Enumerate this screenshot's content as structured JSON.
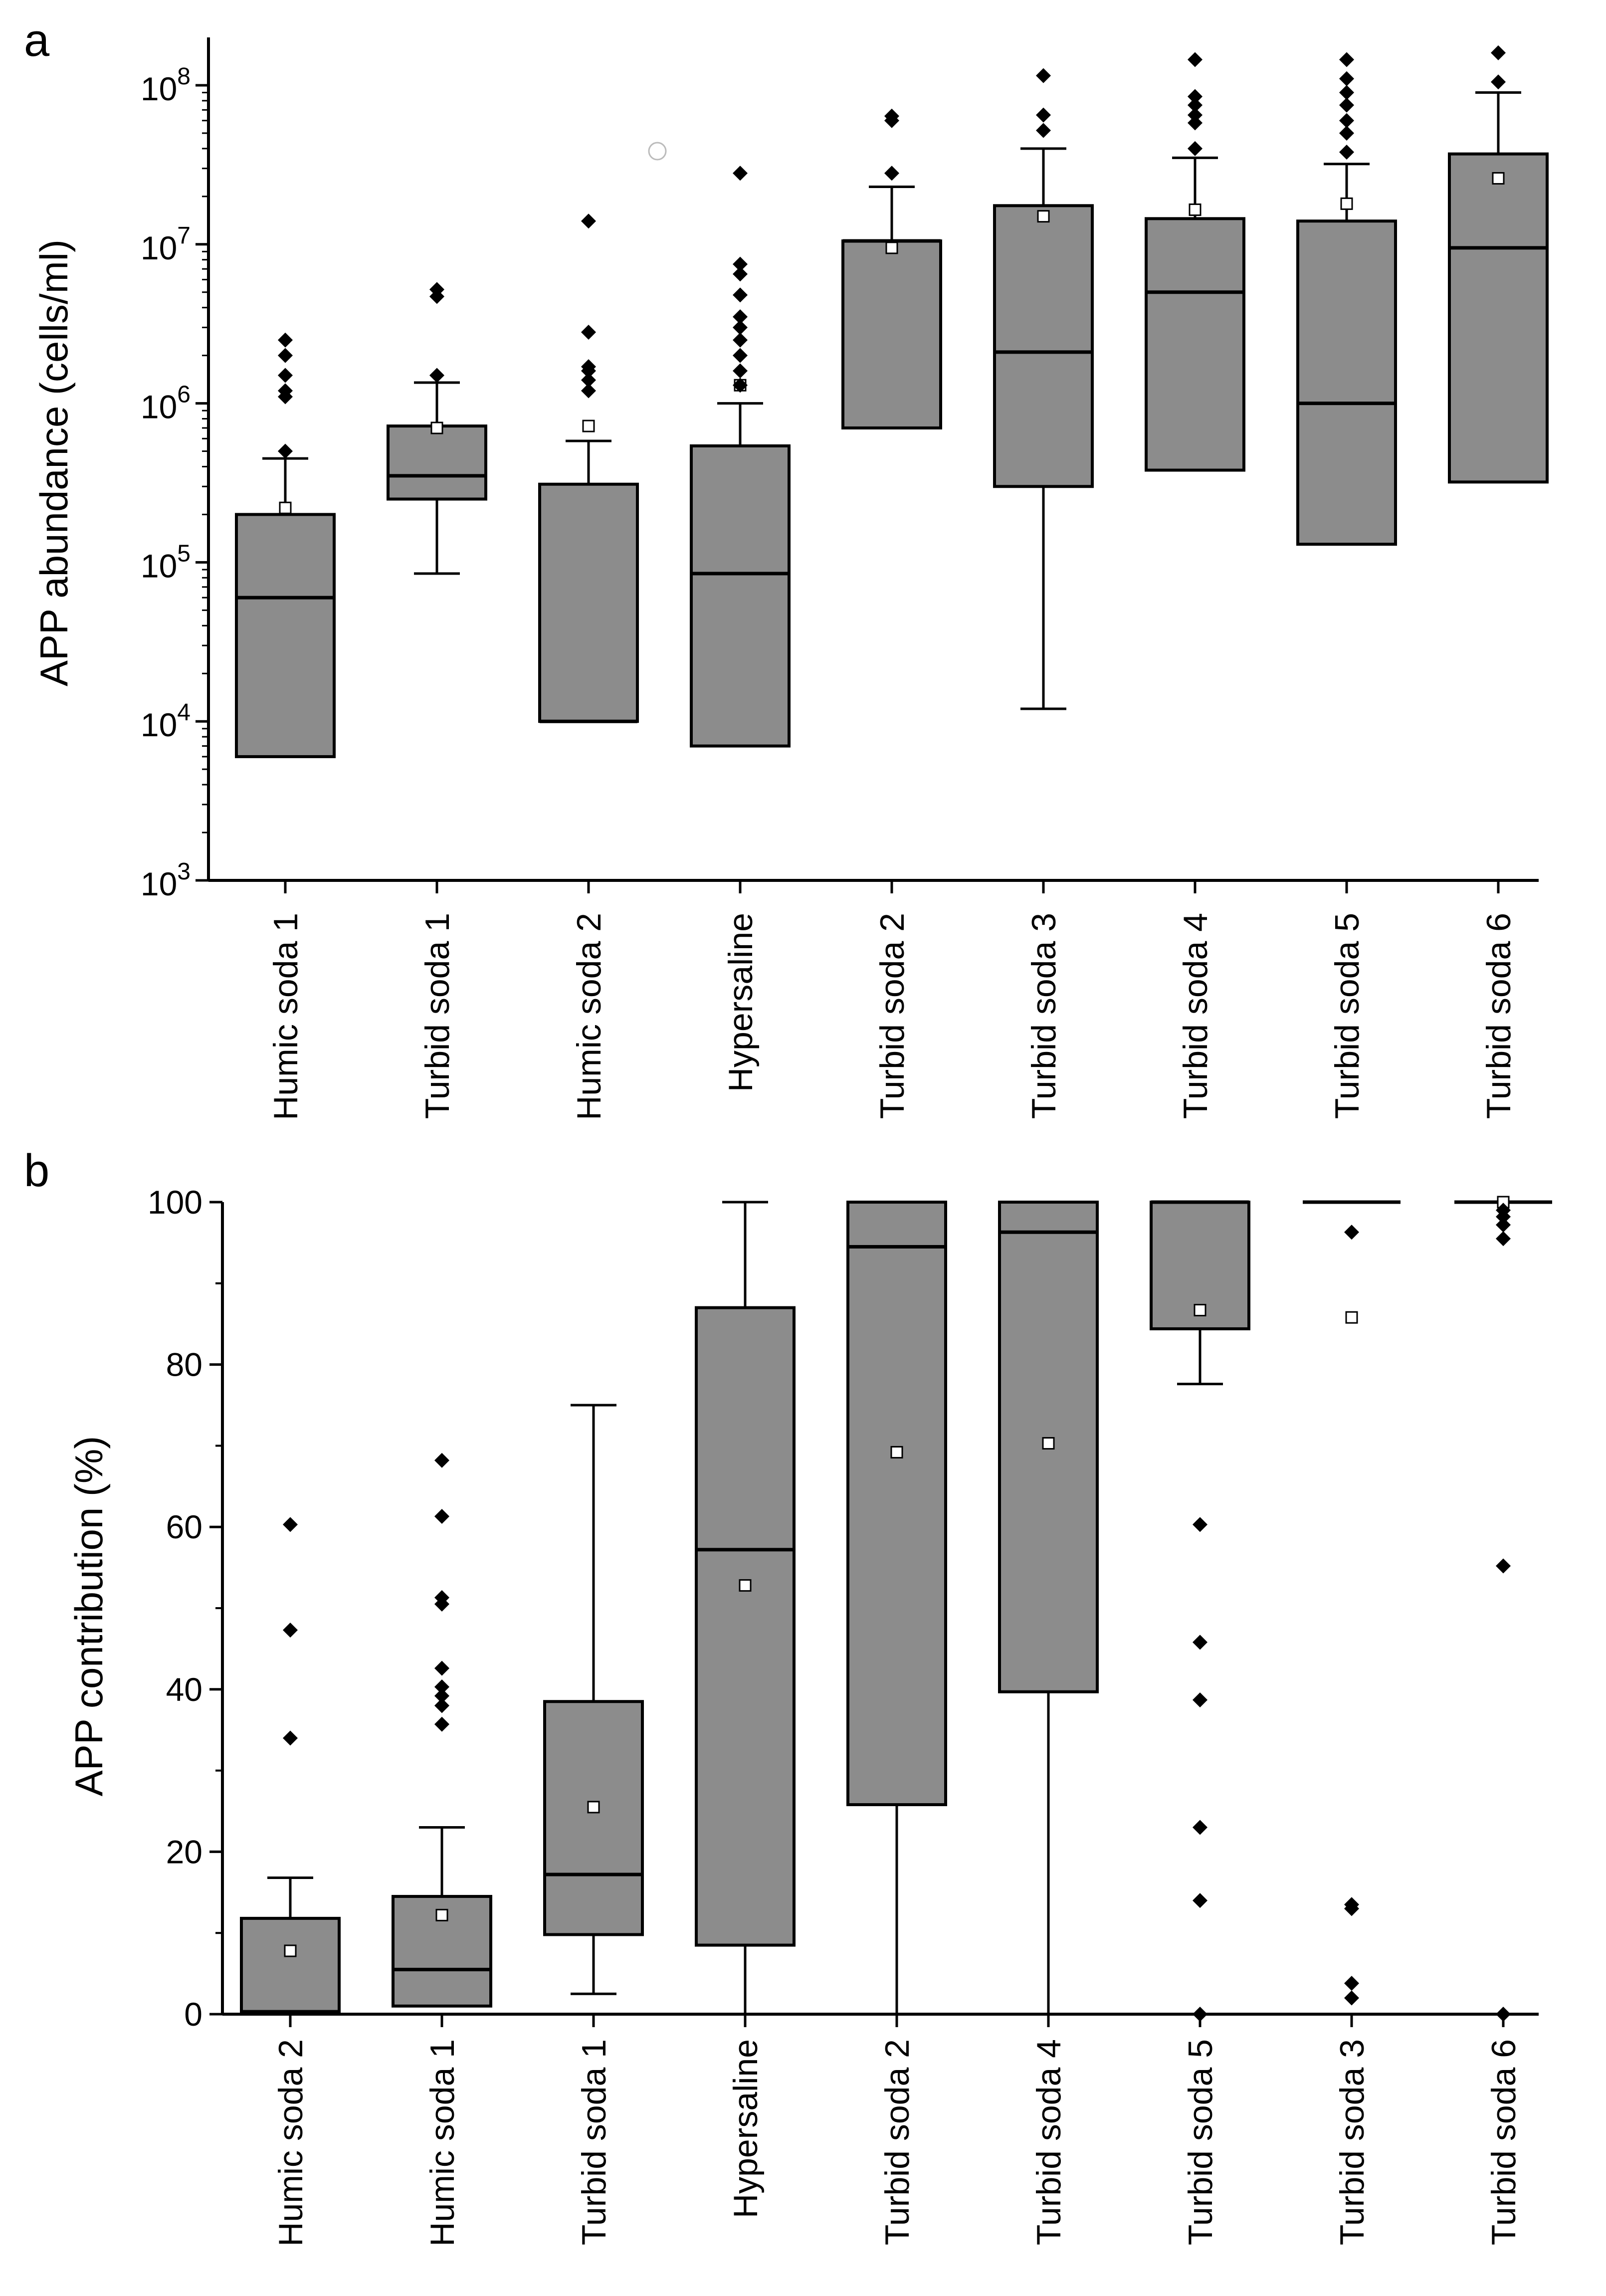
{
  "chart_data": [
    {
      "panel": "a",
      "type": "box",
      "title": "",
      "xlabel": "",
      "ylabel": "APP abundance (cells/ml)",
      "yscale": "log",
      "ylim": [
        1000,
        200000000
      ],
      "ytick_base": "10",
      "yticks": [
        {
          "value": 1000,
          "exp": "3"
        },
        {
          "value": 10000,
          "exp": "4"
        },
        {
          "value": 100000,
          "exp": "5"
        },
        {
          "value": 1000000,
          "exp": "6"
        },
        {
          "value": 10000000,
          "exp": "7"
        },
        {
          "value": 100000000,
          "exp": "8"
        }
      ],
      "categories": [
        "Humic soda 1",
        "Turbid soda 1",
        "Humic soda 2",
        "Hypersaline",
        "Turbid soda 2",
        "Turbid soda 3",
        "Turbid soda 4",
        "Turbid soda 5",
        "Turbid soda 6"
      ],
      "boxes": [
        {
          "whisker_low": 6000,
          "q1": 6000,
          "median": 60000,
          "q3": 200000,
          "whisker_high": 450000,
          "mean": 220000,
          "outliers": [
            500000,
            1100000,
            1200000,
            1500000,
            2000000,
            2500000
          ]
        },
        {
          "whisker_low": 85000,
          "q1": 250000,
          "median": 350000,
          "q3": 720000,
          "whisker_high": 1350000,
          "mean": 700000,
          "outliers": [
            1500000,
            4700000,
            5200000
          ]
        },
        {
          "whisker_low": 10000,
          "q1": 10000,
          "median": 10000,
          "q3": 310000,
          "whisker_high": 580000,
          "mean": 720000,
          "outliers": [
            1200000,
            1400000,
            1600000,
            1700000,
            2800000,
            14000000
          ]
        },
        {
          "whisker_low": 7000,
          "q1": 7000,
          "median": 85000,
          "q3": 540000,
          "whisker_high": 1000000,
          "mean": 1300000,
          "outliers": [
            1300000,
            1600000,
            2000000,
            2500000,
            3000000,
            3500000,
            4800000,
            6500000,
            7500000,
            28000000
          ]
        },
        {
          "whisker_low": 700000,
          "q1": 700000,
          "median": 10500000,
          "q3": 10500000,
          "whisker_high": 23000000,
          "mean": 9500000,
          "outliers": [
            28000000,
            60000000,
            64000000
          ]
        },
        {
          "whisker_low": 12000,
          "q1": 300000,
          "median": 2100000,
          "q3": 17500000,
          "whisker_high": 40000000,
          "mean": 15000000,
          "outliers": [
            52000000,
            65000000,
            115000000
          ]
        },
        {
          "whisker_low": 380000,
          "q1": 380000,
          "median": 5000000,
          "q3": 14500000,
          "whisker_high": 35000000,
          "mean": 16500000,
          "outliers": [
            40000000,
            58000000,
            65000000,
            75000000,
            85000000,
            145000000
          ]
        },
        {
          "whisker_low": 130000,
          "q1": 130000,
          "median": 1000000,
          "q3": 14000000,
          "whisker_high": 32000000,
          "mean": 18000000,
          "outliers": [
            38000000,
            50000000,
            60000000,
            75000000,
            90000000,
            110000000,
            145000000
          ]
        },
        {
          "whisker_low": 320000,
          "q1": 320000,
          "median": 9500000,
          "q3": 37000000,
          "whisker_high": 90000000,
          "mean": 26000000,
          "outliers": [
            105000000,
            160000000
          ]
        }
      ]
    },
    {
      "panel": "b",
      "type": "box",
      "title": "",
      "xlabel": "",
      "ylabel": "APP contribution (%)",
      "yscale": "linear",
      "ylim": [
        0,
        100
      ],
      "yticks": [
        {
          "value": 0,
          "label": "0"
        },
        {
          "value": 20,
          "label": "20"
        },
        {
          "value": 40,
          "label": "40"
        },
        {
          "value": 60,
          "label": "60"
        },
        {
          "value": 80,
          "label": "80"
        },
        {
          "value": 100,
          "label": "100"
        }
      ],
      "minor_yticks": [
        10,
        30,
        50,
        70,
        90
      ],
      "categories": [
        "Humic soda 2",
        "Humic soda 1",
        "Turbid soda 1",
        "Hypersaline",
        "Turbid soda 2",
        "Turbid soda 4",
        "Turbid soda 5",
        "Turbid soda 3",
        "Turbid soda 6"
      ],
      "boxes": [
        {
          "whisker_low": 0,
          "q1": 0,
          "median": 0.3,
          "q3": 11.8,
          "whisker_high": 16.8,
          "mean": 7.8,
          "outliers": [
            34,
            47.3,
            60.3
          ]
        },
        {
          "whisker_low": 1,
          "q1": 1,
          "median": 5.5,
          "q3": 14.5,
          "whisker_high": 23,
          "mean": 12.2,
          "outliers": [
            35.7,
            38,
            39.2,
            40.3,
            42.6,
            50.5,
            51.3,
            61.3,
            68.2
          ]
        },
        {
          "whisker_low": 2.5,
          "q1": 9.8,
          "median": 17.2,
          "q3": 38.5,
          "whisker_high": 75,
          "mean": 25.5,
          "outliers": []
        },
        {
          "whisker_low": 0,
          "q1": 8.5,
          "median": 57.2,
          "q3": 87,
          "whisker_high": 100,
          "mean": 52.8,
          "outliers": []
        },
        {
          "whisker_low": 0,
          "q1": 25.8,
          "median": 94.5,
          "q3": 100,
          "whisker_high": 100,
          "mean": 69.2,
          "outliers": []
        },
        {
          "whisker_low": 0,
          "q1": 39.7,
          "median": 96.3,
          "q3": 100,
          "whisker_high": 100,
          "mean": 70.3,
          "outliers": []
        },
        {
          "whisker_low": 77.6,
          "q1": 84.4,
          "median": 100,
          "q3": 100,
          "whisker_high": 100,
          "mean": 86.7,
          "outliers": [
            0,
            14,
            23,
            38.7,
            45.8,
            60.3
          ]
        },
        {
          "whisker_low": 100,
          "q1": 100,
          "median": 100,
          "q3": 100,
          "whisker_high": 100,
          "mean": 85.8,
          "outliers": [
            2,
            3.8,
            13,
            13.5,
            96.3
          ]
        },
        {
          "whisker_low": 100,
          "q1": 100,
          "median": 100,
          "q3": 100,
          "whisker_high": 100,
          "mean": 100,
          "outliers": [
            0,
            55.2,
            95.5,
            97.2,
            98.2,
            99
          ]
        }
      ]
    }
  ],
  "colors": {
    "box_fill": "#8c8c8c",
    "stroke": "#000000",
    "mean_fill": "#ffffff",
    "outlier": "#000000"
  },
  "panels": [
    {
      "letter": "a"
    },
    {
      "letter": "b"
    }
  ]
}
